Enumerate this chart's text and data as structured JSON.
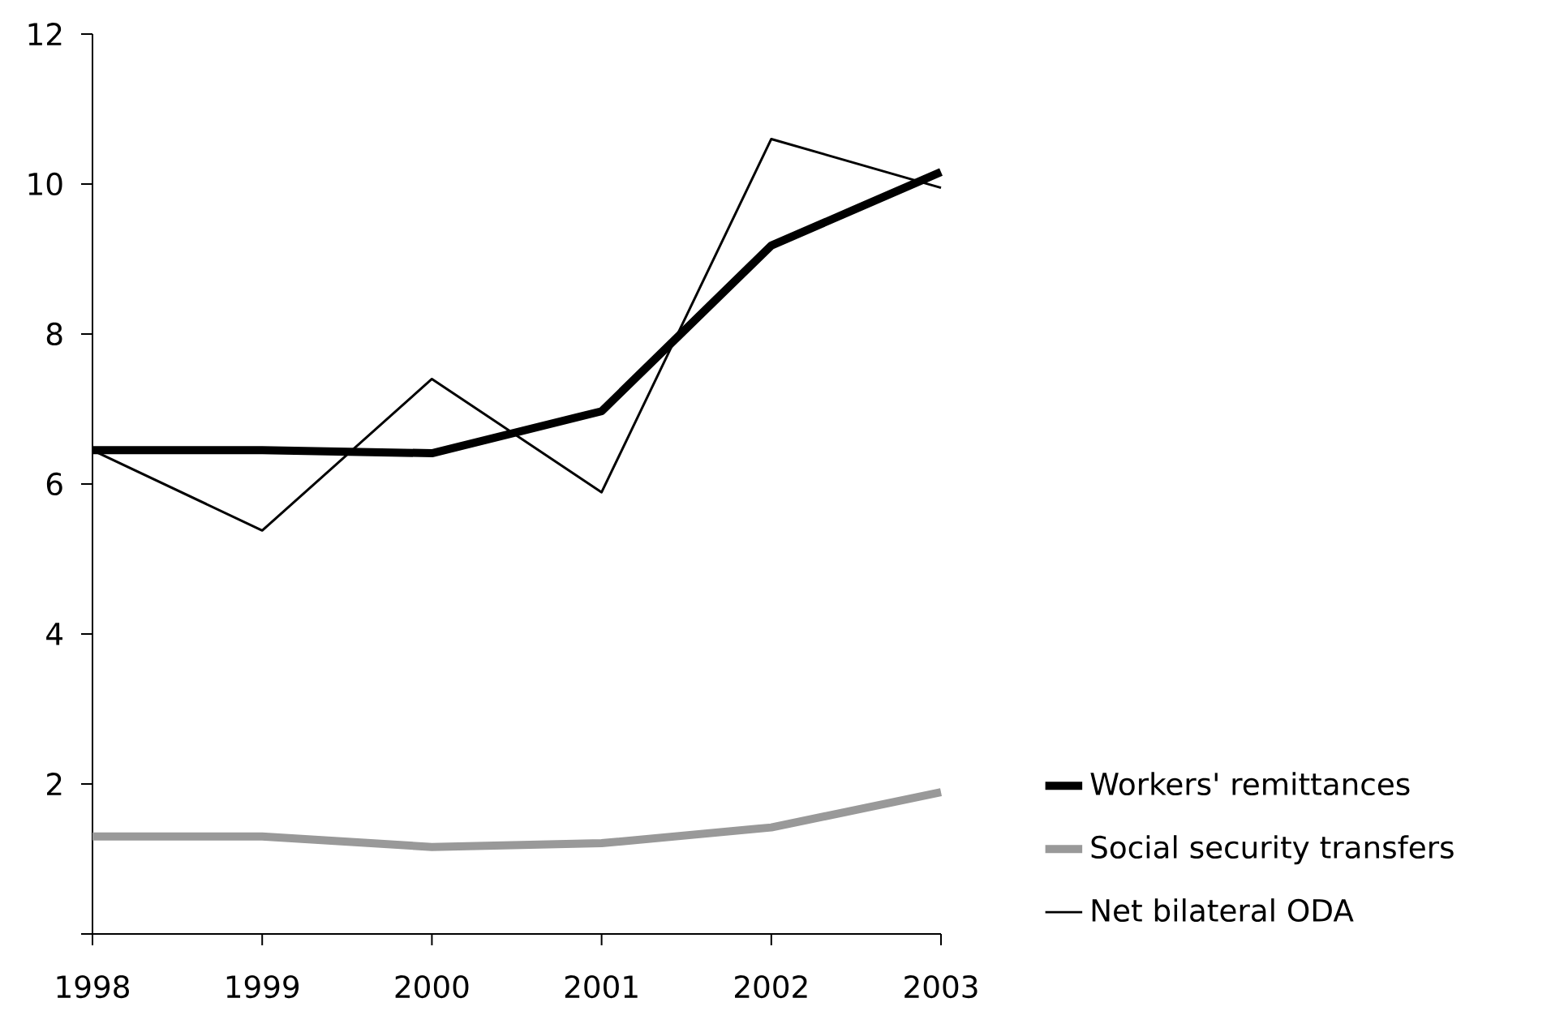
{
  "chart_data": {
    "type": "line",
    "categories": [
      "1998",
      "1999",
      "2000",
      "2001",
      "2002",
      "2003"
    ],
    "series": [
      {
        "name": "Workers' remittances",
        "color": "#000000",
        "values": [
          6.45,
          6.45,
          6.41,
          6.97,
          9.18,
          10.16
        ]
      },
      {
        "name": "Social security transfers",
        "color": "#999999",
        "values": [
          1.3,
          1.3,
          1.16,
          1.21,
          1.42,
          1.89
        ]
      },
      {
        "name": "Net bilateral ODA",
        "color": "#000000",
        "values": [
          6.45,
          5.38,
          7.4,
          5.89,
          10.6,
          9.95
        ]
      }
    ],
    "ylim": [
      0,
      12
    ],
    "yticks": [
      {
        "value": 0,
        "label": null
      },
      2,
      4,
      6,
      8,
      10,
      12
    ],
    "legend": "right",
    "grid": false,
    "marker": "none",
    "line_style": "solid"
  }
}
